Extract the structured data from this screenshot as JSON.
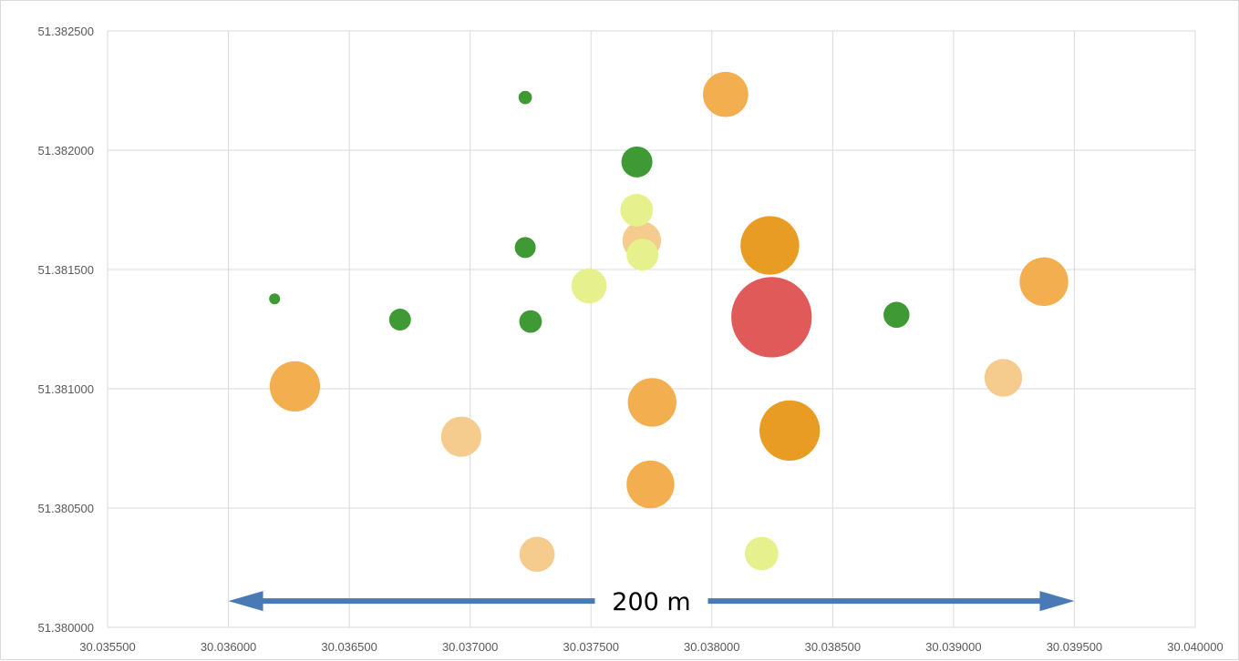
{
  "chart_data": {
    "type": "scatter",
    "title": "",
    "xlabel": "",
    "ylabel": "",
    "xlim": [
      30.0355,
      30.04
    ],
    "ylim": [
      51.38,
      51.3825
    ],
    "x_ticks": [
      "30.035500",
      "30.036000",
      "30.036500",
      "30.037000",
      "30.037500",
      "30.038000",
      "30.038500",
      "30.039000",
      "30.039500",
      "30.040000"
    ],
    "y_ticks": [
      "51.380000",
      "51.380500",
      "51.381000",
      "51.381500",
      "51.382000",
      "51.382500"
    ],
    "grid": true,
    "legend": "none",
    "colors": {
      "dark_green": "#3f9a35",
      "light_yellow": "#e6f08c",
      "light_orange": "#f5cb8e",
      "orange": "#f2ae4f",
      "dark_orange": "#e89c24",
      "red": "#e05a5a",
      "arrow": "#4a7ab5",
      "grid": "#d9d9d9"
    },
    "points": [
      {
        "x": 30.036191,
        "y": 51.381377,
        "size": 0.13,
        "color": "dark_green"
      },
      {
        "x": 30.03671,
        "y": 51.38129,
        "size": 0.26,
        "color": "dark_green"
      },
      {
        "x": 30.037228,
        "y": 51.382221,
        "size": 0.16,
        "color": "dark_green"
      },
      {
        "x": 30.037228,
        "y": 51.381592,
        "size": 0.25,
        "color": "dark_green"
      },
      {
        "x": 30.03725,
        "y": 51.381282,
        "size": 0.27,
        "color": "dark_green"
      },
      {
        "x": 30.03769,
        "y": 51.381951,
        "size": 0.37,
        "color": "dark_green"
      },
      {
        "x": 30.038764,
        "y": 51.38131,
        "size": 0.31,
        "color": "dark_green"
      },
      {
        "x": 30.037689,
        "y": 51.381749,
        "size": 0.39,
        "color": "light_yellow"
      },
      {
        "x": 30.037713,
        "y": 51.381562,
        "size": 0.38,
        "color": "light_yellow"
      },
      {
        "x": 30.037492,
        "y": 51.381431,
        "size": 0.42,
        "color": "light_yellow"
      },
      {
        "x": 30.038206,
        "y": 51.380309,
        "size": 0.4,
        "color": "light_yellow"
      },
      {
        "x": 30.03771,
        "y": 51.381621,
        "size": 0.46,
        "color": "light_orange"
      },
      {
        "x": 30.036963,
        "y": 51.380799,
        "size": 0.48,
        "color": "light_orange"
      },
      {
        "x": 30.037277,
        "y": 51.380306,
        "size": 0.42,
        "color": "light_orange"
      },
      {
        "x": 30.039206,
        "y": 51.381046,
        "size": 0.45,
        "color": "light_orange"
      },
      {
        "x": 30.038057,
        "y": 51.382234,
        "size": 0.54,
        "color": "orange"
      },
      {
        "x": 30.036275,
        "y": 51.38101,
        "size": 0.6,
        "color": "orange"
      },
      {
        "x": 30.037753,
        "y": 51.380943,
        "size": 0.58,
        "color": "orange"
      },
      {
        "x": 30.037746,
        "y": 51.380599,
        "size": 0.57,
        "color": "orange"
      },
      {
        "x": 30.039374,
        "y": 51.381449,
        "size": 0.58,
        "color": "orange"
      },
      {
        "x": 30.03824,
        "y": 51.381601,
        "size": 0.7,
        "color": "dark_orange"
      },
      {
        "x": 30.038322,
        "y": 51.380825,
        "size": 0.72,
        "color": "dark_orange"
      },
      {
        "x": 30.038247,
        "y": 51.3813,
        "size": 0.96,
        "color": "red"
      }
    ],
    "annotations": [
      {
        "text": "200 m",
        "x_from": 30.036,
        "x_to": 30.0395,
        "y": 51.38011,
        "style": "double-arrow"
      }
    ]
  }
}
